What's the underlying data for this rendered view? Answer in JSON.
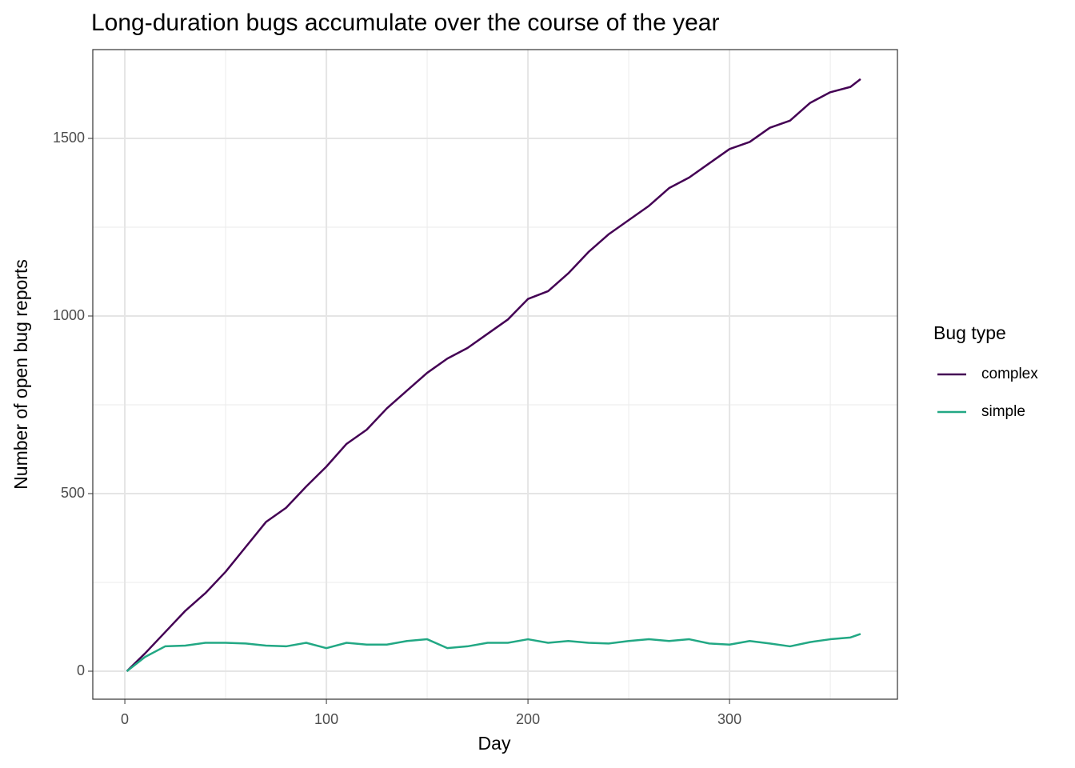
{
  "chart_data": {
    "type": "line",
    "title": "Long-duration bugs accumulate over the course of the year",
    "x_label": "Day",
    "y_label": "Number of open bug reports",
    "legend_title": "Bug type",
    "legend": "right",
    "grid": true,
    "x": [
      1,
      10,
      20,
      30,
      40,
      50,
      60,
      70,
      80,
      90,
      100,
      110,
      120,
      130,
      140,
      150,
      160,
      170,
      180,
      190,
      200,
      210,
      220,
      230,
      240,
      250,
      260,
      270,
      280,
      290,
      300,
      310,
      320,
      330,
      340,
      350,
      360,
      365
    ],
    "series": [
      {
        "name": "complex",
        "color": "#440154",
        "values": [
          0,
          50,
          110,
          170,
          220,
          280,
          350,
          420,
          460,
          520,
          576,
          640,
          680,
          740,
          790,
          840,
          880,
          910,
          950,
          990,
          1048,
          1070,
          1120,
          1180,
          1230,
          1270,
          1310,
          1360,
          1390,
          1430,
          1470,
          1490,
          1530,
          1550,
          1600,
          1630,
          1645,
          1667
        ]
      },
      {
        "name": "simple",
        "color": "#22a884",
        "values": [
          0,
          40,
          70,
          72,
          80,
          80,
          78,
          72,
          70,
          80,
          65,
          80,
          75,
          75,
          85,
          90,
          65,
          70,
          80,
          80,
          90,
          80,
          85,
          80,
          78,
          85,
          90,
          85,
          90,
          78,
          75,
          85,
          78,
          70,
          82,
          90,
          95,
          105
        ]
      }
    ],
    "xlim": [
      -15.9,
      383.3
    ],
    "ylim": [
      -78.8,
      1750
    ],
    "xticks": [
      0,
      100,
      200,
      300
    ],
    "yticks": [
      0,
      500,
      1000,
      1500
    ],
    "x_minor_grid": [
      50,
      150,
      250,
      350
    ],
    "y_minor_grid": [
      250,
      750,
      1250
    ]
  }
}
